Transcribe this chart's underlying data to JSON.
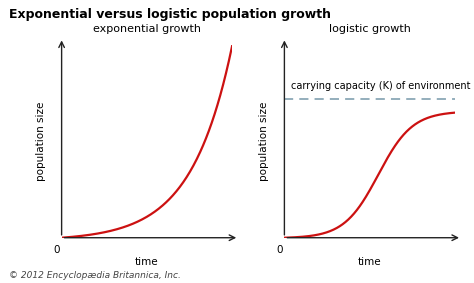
{
  "title": "Exponential versus logistic population growth",
  "title_fontsize": 9,
  "title_fontweight": "bold",
  "subplot1_title": "exponential growth",
  "subplot2_title": "logistic growth",
  "subplot_title_fontsize": 8,
  "xlabel": "time",
  "ylabel": "population size",
  "axis_label_fontsize": 7.5,
  "carrying_capacity_label": "carrying capacity (K) of environment",
  "carrying_capacity_fontsize": 7,
  "background_color": "#deeef7",
  "figure_background": "#ffffff",
  "curve_color": "#cc1111",
  "curve_linewidth": 1.6,
  "dashed_line_color": "#7799aa",
  "dashed_line_y": 0.72,
  "copyright_text": "© 2012 Encyclopædia Britannica, Inc.",
  "copyright_fontsize": 6.5,
  "zero_label_fontsize": 7.5,
  "axis_arrow_color": "#222222"
}
